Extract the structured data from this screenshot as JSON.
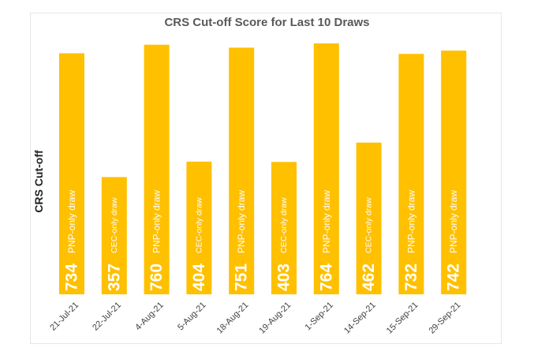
{
  "chart_data": {
    "type": "bar",
    "title": "CRS Cut-off Score for Last 10 Draws",
    "ylabel": "CRS Cut-off",
    "xlabel": "",
    "categories": [
      "21-Jul-21",
      "22-Jul-21",
      "4-Aug-21",
      "5-Aug-21",
      "18-Aug-21",
      "19-Aug-21",
      "1-Sep-21",
      "14-Sep-21",
      "15-Sep-21",
      "29-Sep-21"
    ],
    "values": [
      734,
      357,
      760,
      404,
      751,
      403,
      764,
      462,
      732,
      742
    ],
    "annotations": [
      "PNP-only draw",
      "CEC-only draw",
      "PNP-only draw",
      "CEC-only draw",
      "PNP-only draw",
      "CEC-only draw",
      "PNP-only draw",
      "CEC-only draw",
      "PNP-only draw",
      "PNP-only draw"
    ],
    "ylim": [
      0,
      800
    ],
    "grid": false,
    "bar_color": "#FFC000"
  }
}
